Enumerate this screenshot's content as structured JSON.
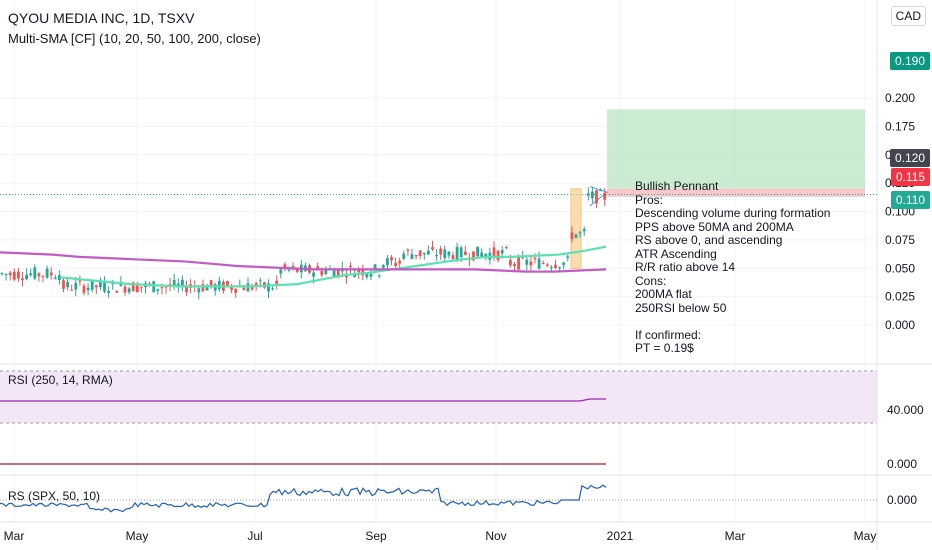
{
  "header": {
    "title": "QYOU MEDIA INC, 1D, TSXV",
    "indicator": "Multi-SMA [CF] (10, 20, 50, 100, 200, close)",
    "currency": "CAD"
  },
  "panes": {
    "rsi_label": "RSI (250, 14, RMA)",
    "rs_label": "RS (SPX, 50, 10)"
  },
  "badges": [
    {
      "text": "0.190",
      "color": "#089981"
    },
    {
      "text": "0.120",
      "color": "#434651"
    },
    {
      "text": "0.115",
      "color": "#f23645"
    },
    {
      "text": "0.110",
      "color": "#22ab94"
    }
  ],
  "notes": "Bullish Pennant\nPros:\nDescending volume during formation\nPPS above 50MA and 200MA\nRS above 0, and ascending\nATR Ascending\nR/R ratio above 14\nCons:\n200MA flat\n250RSI below 50\n\nIf confirmed:\nPT = 0.19$",
  "colors": {
    "up": "#26a69a",
    "down": "#ef5350",
    "sma50": "#5be2b0",
    "sma200": "#c25bc2",
    "rsi": "#9c27b0",
    "rs": "#1e5fbf",
    "target_zone": "#b9e6c0",
    "stop_zone": "#f8c7c9",
    "highlight": "#f7c67a"
  },
  "chart_data": {
    "type": "candlestick",
    "x_ticks": [
      "Mar",
      "May",
      "Jul",
      "Sep",
      "Nov",
      "2021",
      "Mar",
      "May"
    ],
    "y_ticks": [
      "0.200",
      "0.175",
      "0.150",
      "0.125",
      "0.100",
      "0.075",
      "0.050",
      "0.025",
      "0.000"
    ],
    "ylim": [
      0,
      0.21
    ],
    "rsi_ticks": [
      "40.000",
      "0.000"
    ],
    "rs_ticks": [
      "0.000"
    ],
    "target": 0.19,
    "entry": 0.12,
    "last": 0.115,
    "stop": 0.11,
    "series": [
      {
        "name": "SMA 50",
        "values": [
          0.042,
          0.04,
          0.038,
          0.036,
          0.035,
          0.034,
          0.034,
          0.034,
          0.034,
          0.035,
          0.036,
          0.04,
          0.044,
          0.046,
          0.049,
          0.052,
          0.055,
          0.058,
          0.06,
          0.06,
          0.061,
          0.062,
          0.065,
          0.069
        ]
      },
      {
        "name": "SMA 200",
        "values": [
          0.064,
          0.063,
          0.062,
          0.06,
          0.059,
          0.058,
          0.057,
          0.056,
          0.054,
          0.052,
          0.051,
          0.05,
          0.049,
          0.049,
          0.049,
          0.049,
          0.049,
          0.049,
          0.049,
          0.048,
          0.047,
          0.047,
          0.048,
          0.049
        ]
      }
    ]
  }
}
